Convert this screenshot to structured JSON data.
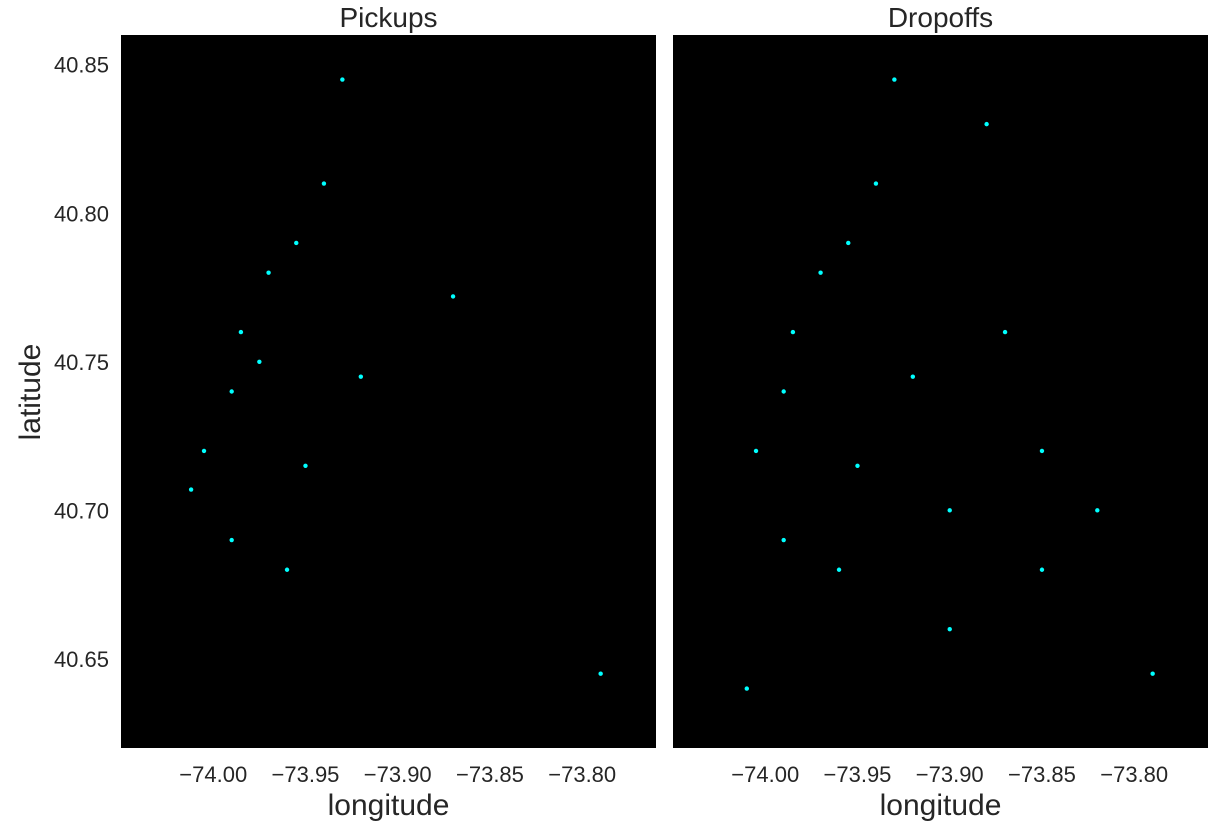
{
  "chart_data": [
    {
      "type": "scatter",
      "title": "Pickups",
      "xlabel": "longitude",
      "ylabel": "latitude",
      "xlim": [
        -74.05,
        -73.76
      ],
      "ylim": [
        40.62,
        40.86
      ],
      "xticks": [
        -74.0,
        -73.95,
        -73.9,
        -73.85,
        -73.8
      ],
      "xtick_labels": [
        "−74.00",
        "−73.95",
        "−73.90",
        "−73.85",
        "−73.80"
      ],
      "yticks": [
        40.65,
        40.7,
        40.75,
        40.8,
        40.85
      ],
      "ytick_labels": [
        "40.65",
        "40.70",
        "40.75",
        "40.80",
        "40.85"
      ],
      "background": "#000000",
      "point_color": "#00ffff",
      "grid": false,
      "points_sample": [
        [
          -73.985,
          40.76
        ],
        [
          -73.97,
          40.78
        ],
        [
          -73.955,
          40.79
        ],
        [
          -73.99,
          40.74
        ],
        [
          -74.005,
          40.72
        ],
        [
          -74.012,
          40.707
        ],
        [
          -73.94,
          40.81
        ],
        [
          -73.93,
          40.845
        ],
        [
          -73.96,
          40.68
        ],
        [
          -73.99,
          40.69
        ],
        [
          -73.87,
          40.772
        ],
        [
          -73.79,
          40.645
        ],
        [
          -73.92,
          40.745
        ],
        [
          -73.95,
          40.715
        ],
        [
          -73.975,
          40.75
        ]
      ]
    },
    {
      "type": "scatter",
      "title": "Dropoffs",
      "xlabel": "longitude",
      "ylabel": "",
      "xlim": [
        -74.05,
        -73.76
      ],
      "ylim": [
        40.62,
        40.86
      ],
      "xticks": [
        -74.0,
        -73.95,
        -73.9,
        -73.85,
        -73.8
      ],
      "xtick_labels": [
        "−74.00",
        "−73.95",
        "−73.90",
        "−73.85",
        "−73.80"
      ],
      "yticks": [],
      "ytick_labels": [],
      "background": "#000000",
      "point_color": "#00ffff",
      "grid": false,
      "points_sample": [
        [
          -73.985,
          40.76
        ],
        [
          -73.97,
          40.78
        ],
        [
          -73.955,
          40.79
        ],
        [
          -73.99,
          40.74
        ],
        [
          -74.005,
          40.72
        ],
        [
          -73.94,
          40.81
        ],
        [
          -73.93,
          40.845
        ],
        [
          -73.96,
          40.68
        ],
        [
          -73.99,
          40.69
        ],
        [
          -73.9,
          40.7
        ],
        [
          -73.87,
          40.76
        ],
        [
          -73.85,
          40.72
        ],
        [
          -73.82,
          40.7
        ],
        [
          -73.79,
          40.645
        ],
        [
          -73.92,
          40.745
        ],
        [
          -73.95,
          40.715
        ],
        [
          -73.88,
          40.83
        ],
        [
          -74.01,
          40.64
        ],
        [
          -73.9,
          40.66
        ],
        [
          -73.85,
          40.68
        ]
      ]
    }
  ]
}
